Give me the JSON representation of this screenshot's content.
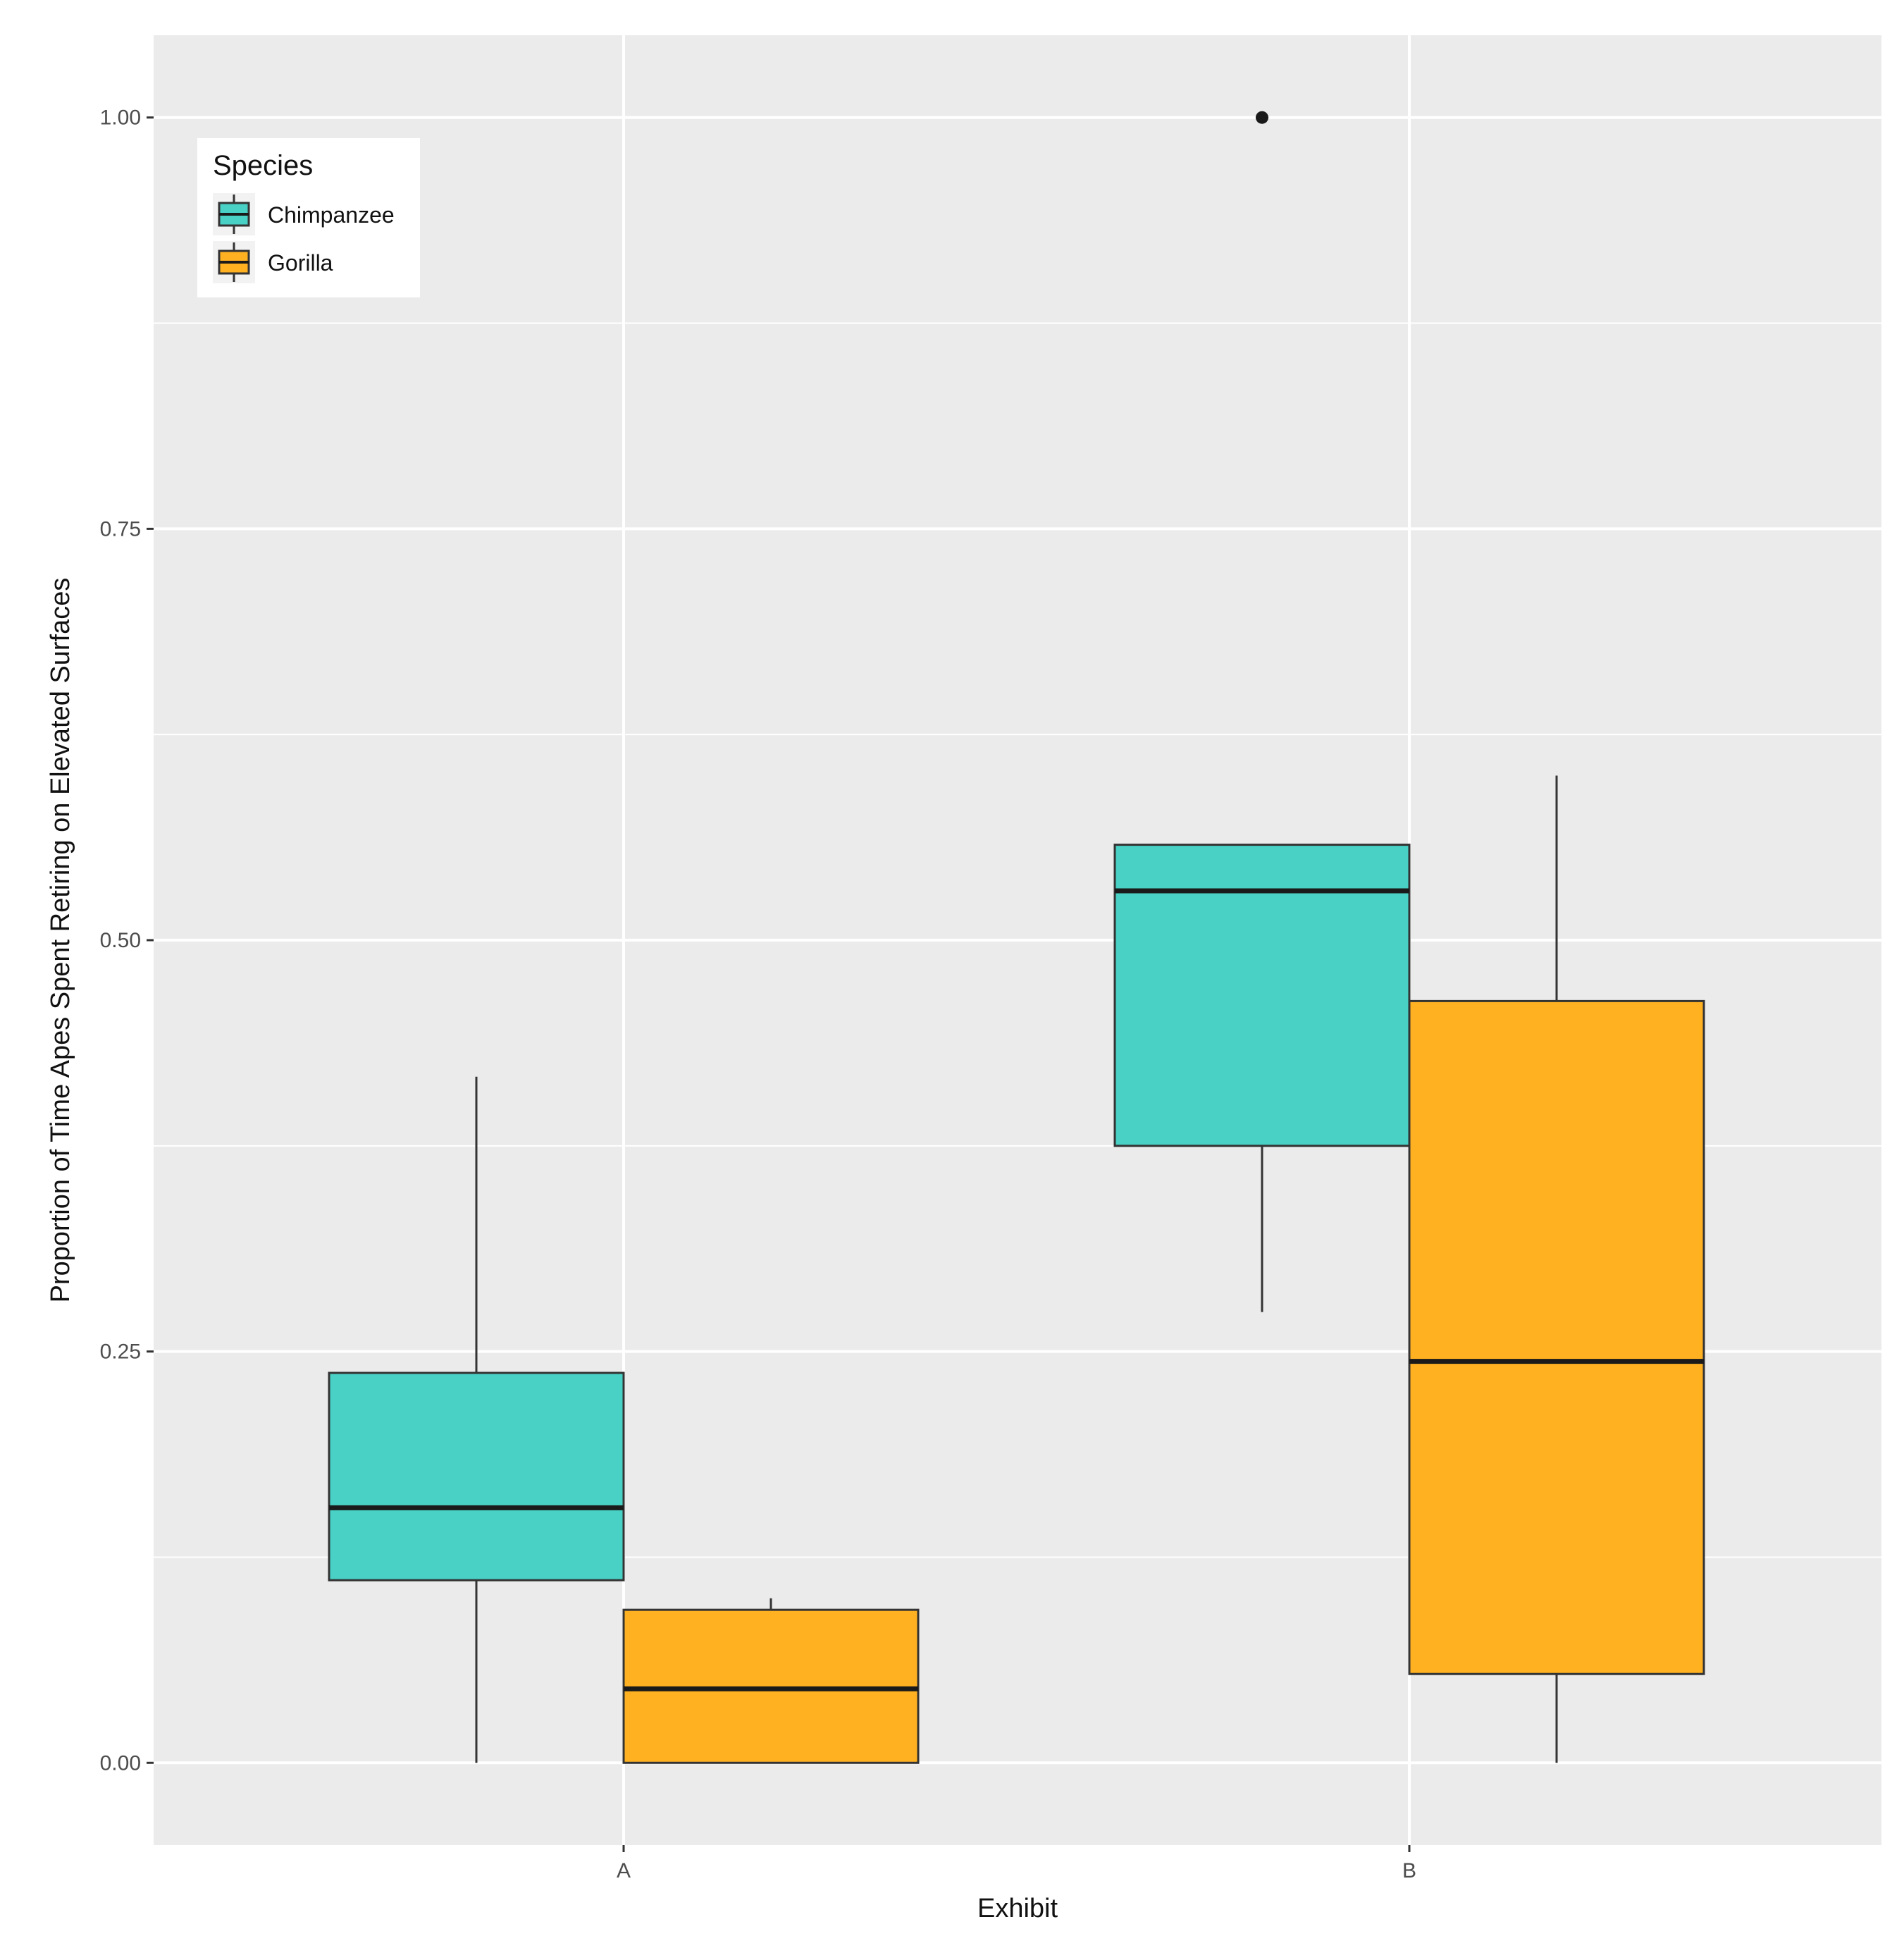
{
  "chart_data": {
    "type": "boxplot",
    "title": "",
    "xlabel": "Exhibit",
    "ylabel": "Proportion of Time Apes Spent Retiring on Elevated Surfaces",
    "categories": [
      "A",
      "B"
    ],
    "ylim": [
      -0.05,
      1.05
    ],
    "yticks": [
      0.0,
      0.25,
      0.5,
      0.75,
      1.0
    ],
    "ytick_labels": [
      "0.00",
      "0.25",
      "0.50",
      "0.75",
      "1.00"
    ],
    "legend": {
      "title": "Species",
      "position": "top-left",
      "entries": [
        "Chimpanzee",
        "Gorilla"
      ]
    },
    "series": [
      {
        "name": "Chimpanzee",
        "color": "#48d1c4",
        "boxes": [
          {
            "category": "A",
            "min": 0.0,
            "q1": 0.111,
            "median": 0.155,
            "q3": 0.237,
            "max": 0.417,
            "outliers": []
          },
          {
            "category": "B",
            "min": 0.274,
            "q1": 0.375,
            "median": 0.53,
            "q3": 0.558,
            "max": null,
            "outliers": [
              1.0
            ]
          }
        ]
      },
      {
        "name": "Gorilla",
        "color": "#ffb122",
        "boxes": [
          {
            "category": "A",
            "min": 0.0,
            "q1": 0.0,
            "median": 0.045,
            "q3": 0.093,
            "max": 0.1,
            "outliers": []
          },
          {
            "category": "B",
            "min": 0.0,
            "q1": 0.054,
            "median": 0.244,
            "q3": 0.463,
            "max": 0.6,
            "outliers": []
          }
        ]
      }
    ],
    "colors": {
      "panel_background": "#ebebeb",
      "grid": "#ffffff",
      "box_outline": "#333333",
      "median": "#1a1a1a"
    }
  }
}
